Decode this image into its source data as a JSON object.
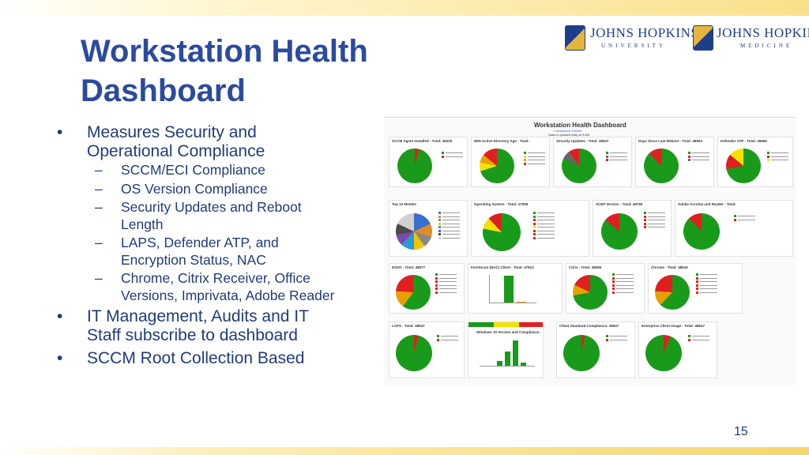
{
  "slide": {
    "title_line1": "Workstation Health",
    "title_line2": "Dashboard",
    "page_number": "15"
  },
  "bullets": {
    "b1_line1": "Measures Security and",
    "b1_line2": "Operational Compliance",
    "sub1": "SCCM/ECI Compliance",
    "sub2": "OS Version Compliance",
    "sub3_line1": "Security Updates and Reboot",
    "sub3_line2": "Length",
    "sub4_line1": "LAPS, Defender ATP, and",
    "sub4_line2": "Encryption Status, NAC",
    "sub5_line1": "Chrome, Citrix Receiver, Office",
    "sub5_line2": "Versions, Imprivata, Adobe Reader",
    "b2_line1": "IT Management, Audits and IT",
    "b2_line2": "Staff subscribe to dashboard",
    "b3": "SCCM Root Collection Based",
    "bullet_glyph": "•",
    "dash_glyph": "–"
  },
  "logos": {
    "jhu_name": "JOHNS HOPKINS",
    "jhu_sub": "UNIVERSITY",
    "jhm_name": "JOHNS HOPKINS",
    "jhm_sub": "MEDICINE"
  },
  "dashboard": {
    "title": "Workstation Health Dashboard",
    "compliance_link": "Compliance Criteria",
    "updated_note": "Data is updated daily at 3 AM",
    "panels": {
      "sccm_agent": "SCCM Agent Installed - Total: 45225",
      "win_ad_age": "WIN Active Directory Age - Total:",
      "security_updates": "Security Updates - Total: 48547",
      "days_since_reboot": "Days Since Last Reboot - Total: 48553",
      "defender_atp": "Defender ATP - Total: 45665",
      "top10_models": "Top 10 Models",
      "operating_system": "Operating System - Total: 47008",
      "scep_version": "SCEP Version - Total: 48760",
      "adobe": "Adobe Acrobat and Reader - Total:",
      "esso": "ESSO - Total: 48577",
      "forescout": "ForeScout (NAC) Client - Total: 47813",
      "citrix": "Citrix - Total: 48556",
      "chrome": "Chrome - Total: 48043",
      "laps": "LAPS - Total: 48547",
      "win10_version": "Windows 10 Version and Compliance -",
      "client_standard": "Client Standard Compliance: 48547",
      "enterprise_image": "Enterprise Client Image - Total: 48547"
    }
  },
  "colors": {
    "title_blue": "#2b4aa0",
    "text_navy": "#1f3c7a",
    "pie_green": "#1a9a1a",
    "pie_red": "#e02020",
    "accent_gold": "#f4d66a"
  }
}
